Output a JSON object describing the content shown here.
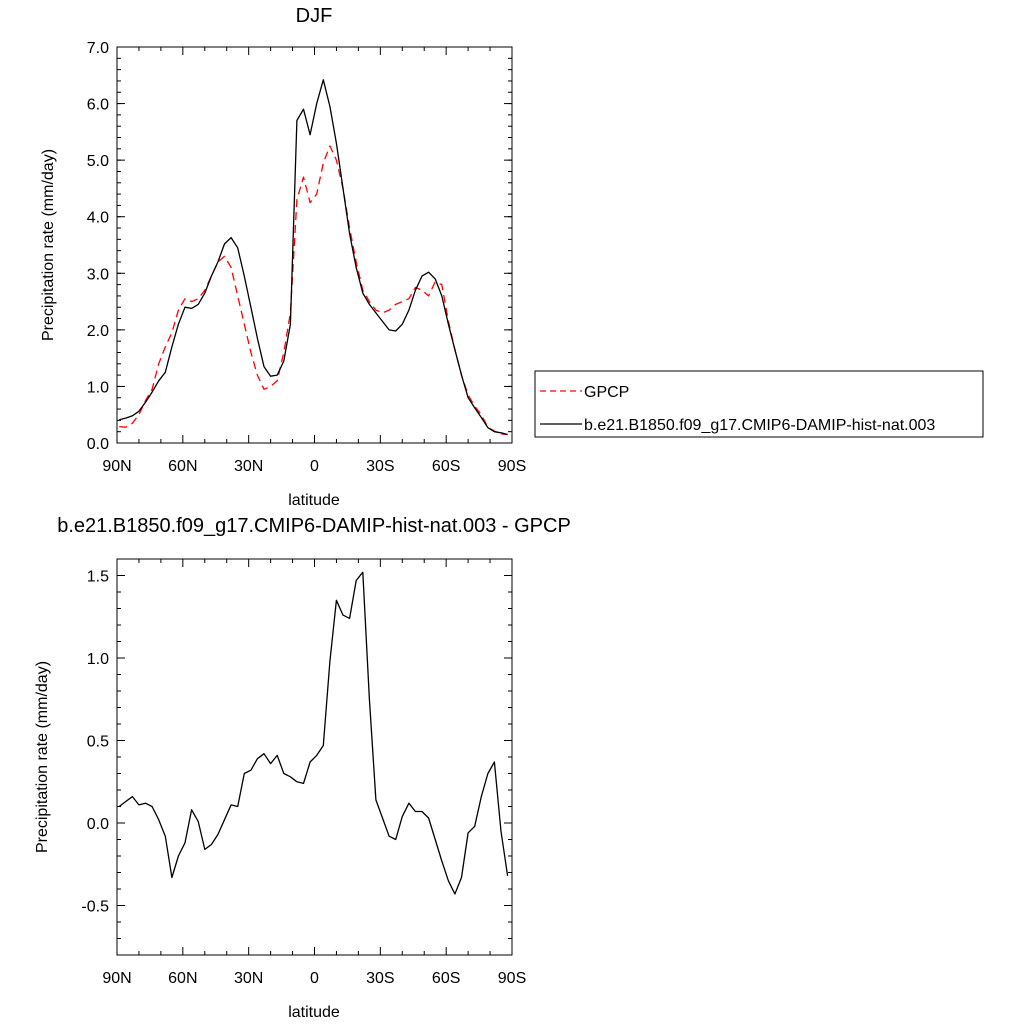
{
  "chart_data": [
    {
      "type": "line",
      "title": "DJF",
      "xlabel": "latitude",
      "ylabel": "Precipitation rate (mm/day)",
      "xlim": [
        90,
        -90
      ],
      "ylim": [
        0,
        7
      ],
      "x_ticks": [
        90,
        60,
        30,
        0,
        -30,
        -60,
        -90
      ],
      "x_tick_labels": [
        "90N",
        "60N",
        "30N",
        "0",
        "30S",
        "60S",
        "90S"
      ],
      "y_ticks": [
        0,
        1,
        2,
        3,
        4,
        5,
        6,
        7
      ],
      "y_tick_labels": [
        "0.0",
        "1.0",
        "2.0",
        "3.0",
        "4.0",
        "5.0",
        "6.0",
        "7.0"
      ],
      "grid": false,
      "legend_position": "right",
      "series": [
        {
          "name": "GPCP",
          "color": "#ff0000",
          "dash": true,
          "points": [
            [
              89,
              0.29
            ],
            [
              86,
              0.28
            ],
            [
              83,
              0.35
            ],
            [
              80,
              0.5
            ],
            [
              77,
              0.75
            ],
            [
              74,
              0.95
            ],
            [
              71,
              1.4
            ],
            [
              68,
              1.7
            ],
            [
              65,
              1.95
            ],
            [
              62,
              2.35
            ],
            [
              59,
              2.55
            ],
            [
              56,
              2.5
            ],
            [
              53,
              2.55
            ],
            [
              50,
              2.7
            ],
            [
              47,
              2.95
            ],
            [
              44,
              3.2
            ],
            [
              41,
              3.3
            ],
            [
              38,
              3.1
            ],
            [
              35,
              2.6
            ],
            [
              32,
              2.1
            ],
            [
              29,
              1.6
            ],
            [
              26,
              1.2
            ],
            [
              23,
              0.95
            ],
            [
              20,
              1.0
            ],
            [
              17,
              1.1
            ],
            [
              14,
              1.6
            ],
            [
              11,
              2.3
            ],
            [
              8,
              4.3
            ],
            [
              5,
              4.7
            ],
            [
              2,
              4.25
            ],
            [
              -1,
              4.4
            ],
            [
              -4,
              4.95
            ],
            [
              -7,
              5.25
            ],
            [
              -10,
              5.0
            ],
            [
              -13,
              4.5
            ],
            [
              -16,
              3.8
            ],
            [
              -19,
              3.2
            ],
            [
              -22,
              2.7
            ],
            [
              -25,
              2.5
            ],
            [
              -28,
              2.35
            ],
            [
              -31,
              2.3
            ],
            [
              -34,
              2.35
            ],
            [
              -37,
              2.45
            ],
            [
              -40,
              2.5
            ],
            [
              -43,
              2.55
            ],
            [
              -46,
              2.75
            ],
            [
              -49,
              2.7
            ],
            [
              -52,
              2.6
            ],
            [
              -55,
              2.85
            ],
            [
              -58,
              2.8
            ],
            [
              -61,
              2.15
            ],
            [
              -64,
              1.65
            ],
            [
              -67,
              1.2
            ],
            [
              -70,
              0.85
            ],
            [
              -73,
              0.65
            ],
            [
              -76,
              0.5
            ],
            [
              -79,
              0.28
            ],
            [
              -82,
              0.21
            ],
            [
              -85,
              0.16
            ],
            [
              -88,
              0.15
            ]
          ]
        },
        {
          "name": "b.e21.B1850.f09_g17.CMIP6-DAMIP-hist-nat.003",
          "color": "#000000",
          "dash": false,
          "points": [
            [
              89,
              0.41
            ],
            [
              86,
              0.44
            ],
            [
              83,
              0.48
            ],
            [
              80,
              0.56
            ],
            [
              77,
              0.72
            ],
            [
              74,
              0.9
            ],
            [
              71,
              1.1
            ],
            [
              68,
              1.25
            ],
            [
              65,
              1.7
            ],
            [
              62,
              2.1
            ],
            [
              59,
              2.4
            ],
            [
              56,
              2.38
            ],
            [
              53,
              2.45
            ],
            [
              50,
              2.65
            ],
            [
              47,
              2.95
            ],
            [
              44,
              3.2
            ],
            [
              41,
              3.52
            ],
            [
              38,
              3.63
            ],
            [
              35,
              3.45
            ],
            [
              32,
              2.95
            ],
            [
              29,
              2.4
            ],
            [
              26,
              1.85
            ],
            [
              23,
              1.35
            ],
            [
              20,
              1.18
            ],
            [
              17,
              1.2
            ],
            [
              14,
              1.45
            ],
            [
              11,
              2.1
            ],
            [
              8,
              5.7
            ],
            [
              5,
              5.9
            ],
            [
              2,
              5.45
            ],
            [
              -1,
              6.0
            ],
            [
              -4,
              6.42
            ],
            [
              -7,
              5.95
            ],
            [
              -10,
              5.3
            ],
            [
              -13,
              4.5
            ],
            [
              -16,
              3.7
            ],
            [
              -19,
              3.1
            ],
            [
              -22,
              2.65
            ],
            [
              -25,
              2.45
            ],
            [
              -28,
              2.3
            ],
            [
              -31,
              2.15
            ],
            [
              -34,
              2.0
            ],
            [
              -37,
              1.98
            ],
            [
              -40,
              2.1
            ],
            [
              -43,
              2.35
            ],
            [
              -46,
              2.7
            ],
            [
              -49,
              2.95
            ],
            [
              -52,
              3.02
            ],
            [
              -55,
              2.9
            ],
            [
              -58,
              2.6
            ],
            [
              -61,
              2.1
            ],
            [
              -64,
              1.65
            ],
            [
              -67,
              1.2
            ],
            [
              -70,
              0.8
            ],
            [
              -73,
              0.62
            ],
            [
              -76,
              0.45
            ],
            [
              -79,
              0.27
            ],
            [
              -82,
              0.2
            ],
            [
              -85,
              0.18
            ],
            [
              -88,
              0.15
            ]
          ]
        }
      ]
    },
    {
      "type": "line",
      "title": "b.e21.B1850.f09_g17.CMIP6-DAMIP-hist-nat.003 - GPCP",
      "xlabel": "latitude",
      "ylabel": "Precipitation rate (mm/day)",
      "xlim": [
        90,
        -90
      ],
      "ylim": [
        -0.8,
        1.6
      ],
      "x_ticks": [
        90,
        60,
        30,
        0,
        -30,
        -60,
        -90
      ],
      "x_tick_labels": [
        "90N",
        "60N",
        "30N",
        "0",
        "30S",
        "60S",
        "90S"
      ],
      "y_ticks": [
        -0.5,
        0,
        0.5,
        1,
        1.5
      ],
      "y_tick_labels": [
        "-0.5",
        "0.0",
        "0.5",
        "1.0",
        "1.5"
      ],
      "grid": false,
      "series": [
        {
          "color": "#000000",
          "dash": false,
          "points": [
            [
              89,
              0.1
            ],
            [
              86,
              0.13
            ],
            [
              83,
              0.16
            ],
            [
              80,
              0.11
            ],
            [
              77,
              0.12
            ],
            [
              74,
              0.1
            ],
            [
              71,
              0.02
            ],
            [
              68,
              -0.08
            ],
            [
              65,
              -0.33
            ],
            [
              62,
              -0.2
            ],
            [
              59,
              -0.12
            ],
            [
              56,
              0.08
            ],
            [
              53,
              0.01
            ],
            [
              50,
              -0.16
            ],
            [
              47,
              -0.13
            ],
            [
              44,
              -0.07
            ],
            [
              41,
              0.02
            ],
            [
              38,
              0.11
            ],
            [
              35,
              0.1
            ],
            [
              32,
              0.3
            ],
            [
              29,
              0.32
            ],
            [
              26,
              0.39
            ],
            [
              23,
              0.42
            ],
            [
              20,
              0.36
            ],
            [
              17,
              0.41
            ],
            [
              14,
              0.3
            ],
            [
              11,
              0.28
            ],
            [
              8,
              0.25
            ],
            [
              5,
              0.24
            ],
            [
              2,
              0.37
            ],
            [
              -1,
              0.41
            ],
            [
              -4,
              0.47
            ],
            [
              -7,
              0.98
            ],
            [
              -10,
              1.35
            ],
            [
              -13,
              1.26
            ],
            [
              -16,
              1.24
            ],
            [
              -19,
              1.47
            ],
            [
              -22,
              1.52
            ],
            [
              -25,
              0.75
            ],
            [
              -28,
              0.14
            ],
            [
              -31,
              0.03
            ],
            [
              -34,
              -0.08
            ],
            [
              -37,
              -0.1
            ],
            [
              -40,
              0.04
            ],
            [
              -43,
              0.12
            ],
            [
              -46,
              0.07
            ],
            [
              -49,
              0.07
            ],
            [
              -52,
              0.03
            ],
            [
              -55,
              -0.1
            ],
            [
              -58,
              -0.23
            ],
            [
              -61,
              -0.35
            ],
            [
              -64,
              -0.43
            ],
            [
              -67,
              -0.33
            ],
            [
              -70,
              -0.06
            ],
            [
              -73,
              -0.02
            ],
            [
              -76,
              0.16
            ],
            [
              -79,
              0.3
            ],
            [
              -82,
              0.37
            ],
            [
              -85,
              -0.05
            ],
            [
              -88,
              -0.32
            ]
          ]
        }
      ]
    }
  ]
}
